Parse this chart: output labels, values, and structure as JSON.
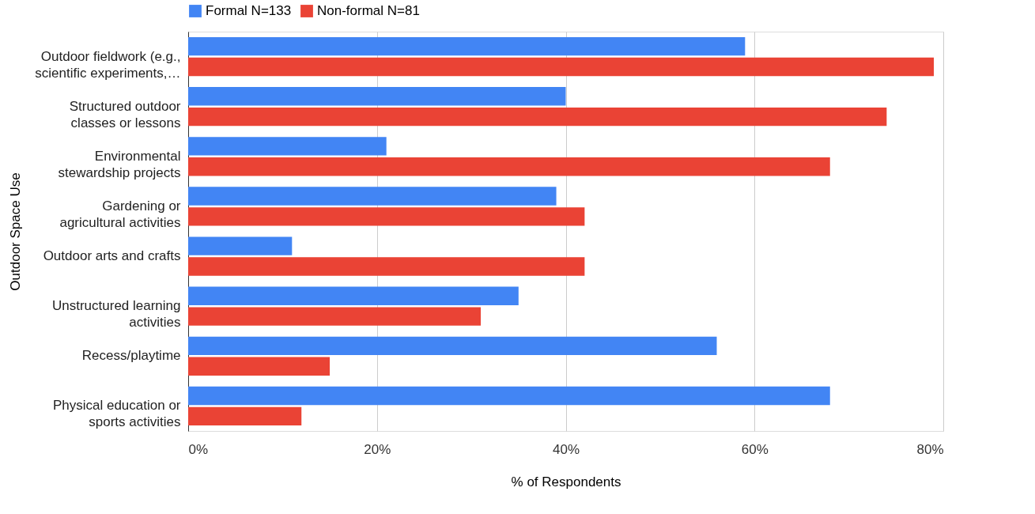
{
  "chart_data": {
    "type": "bar",
    "orientation": "horizontal",
    "xlabel": "% of Respondents",
    "ylabel": "Outdoor Space Use",
    "categories": [
      "Outdoor fieldwork (e.g.,\nscientific experiments,…",
      "Structured outdoor\nclasses or lessons",
      "Environmental\nstewardship projects",
      "Gardening or\nagricultural activities",
      "Outdoor arts and crafts",
      "Unstructured learning\nactivities",
      "Recess/playtime",
      "Physical education or\nsports activities"
    ],
    "series": [
      {
        "name": "Formal N=133",
        "color": "#4285f4",
        "values": [
          59,
          40,
          21,
          39,
          11,
          35,
          56,
          68
        ]
      },
      {
        "name": "Non-formal N=81",
        "color": "#ea4335",
        "values": [
          79,
          74,
          68,
          42,
          42,
          31,
          15,
          12
        ]
      }
    ],
    "xlim": [
      0,
      80
    ],
    "xticks": [
      {
        "value": 0,
        "label": "0%"
      },
      {
        "value": 20,
        "label": "20%"
      },
      {
        "value": 40,
        "label": "40%"
      },
      {
        "value": 60,
        "label": "60%"
      },
      {
        "value": 80,
        "label": "80%"
      }
    ],
    "grid": "x",
    "legend": "top"
  }
}
